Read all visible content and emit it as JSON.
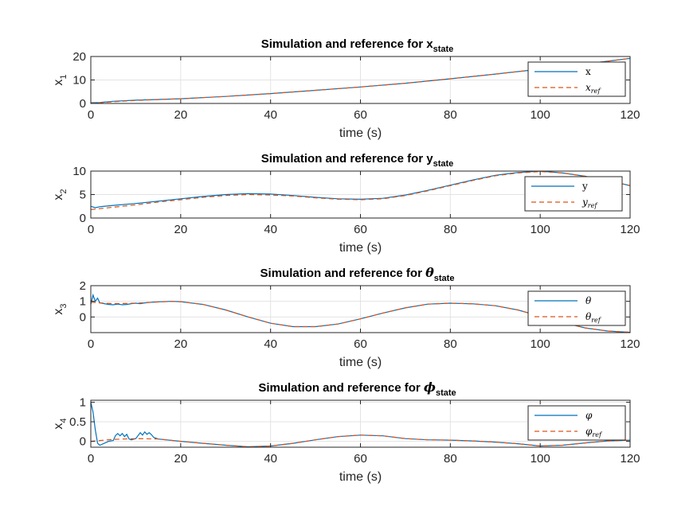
{
  "chart_data": [
    {
      "type": "line",
      "title": "Simulation and reference for x",
      "title_sub": "state",
      "xlabel": "time (s)",
      "ylabel": "x",
      "ylabel_sub": "1",
      "xlim": [
        0,
        120
      ],
      "ylim": [
        0,
        20
      ],
      "xticks": [
        0,
        20,
        40,
        60,
        80,
        100,
        120
      ],
      "yticks": [
        0,
        10,
        20
      ],
      "grid": true,
      "legend_position": "top-right",
      "series": [
        {
          "name": "x",
          "color": "#0072BD",
          "style": "solid",
          "x": [
            0,
            2,
            5,
            10,
            20,
            30,
            40,
            50,
            60,
            70,
            80,
            90,
            100,
            110,
            120
          ],
          "y": [
            0.3,
            0.4,
            0.9,
            1.4,
            2.0,
            3.0,
            4.2,
            5.6,
            7.0,
            8.6,
            10.5,
            12.5,
            14.6,
            16.8,
            19.2
          ]
        },
        {
          "name": "x_ref",
          "color": "#D95319",
          "style": "dashed",
          "x": [
            0,
            2,
            5,
            10,
            20,
            30,
            40,
            50,
            60,
            70,
            80,
            90,
            100,
            110,
            120
          ],
          "y": [
            0.0,
            0.3,
            0.7,
            1.3,
            2.0,
            3.0,
            4.2,
            5.6,
            7.0,
            8.6,
            10.5,
            12.5,
            14.6,
            16.8,
            19.2
          ]
        }
      ]
    },
    {
      "type": "line",
      "title": "Simulation and reference for y",
      "title_sub": "state",
      "xlabel": "time (s)",
      "ylabel": "x",
      "ylabel_sub": "2",
      "xlim": [
        0,
        120
      ],
      "ylim": [
        0,
        10
      ],
      "xticks": [
        0,
        20,
        40,
        60,
        80,
        100,
        120
      ],
      "yticks": [
        0,
        5,
        10
      ],
      "grid": true,
      "legend_position": "top-right",
      "series": [
        {
          "name": "y",
          "color": "#0072BD",
          "style": "solid",
          "x": [
            0,
            1,
            2,
            5,
            10,
            15,
            20,
            25,
            30,
            35,
            40,
            45,
            50,
            55,
            60,
            65,
            70,
            75,
            80,
            85,
            90,
            95,
            100,
            105,
            110,
            115,
            120
          ],
          "y": [
            2.5,
            2.2,
            2.4,
            2.7,
            3.1,
            3.6,
            4.1,
            4.6,
            5.0,
            5.2,
            5.1,
            4.8,
            4.4,
            4.1,
            4.0,
            4.2,
            4.9,
            5.9,
            7.0,
            8.1,
            9.1,
            9.7,
            10.0,
            9.6,
            8.9,
            8.0,
            6.9
          ]
        },
        {
          "name": "y_ref",
          "color": "#D95319",
          "style": "dashed",
          "x": [
            0,
            1,
            2,
            5,
            10,
            15,
            20,
            25,
            30,
            35,
            40,
            45,
            50,
            55,
            60,
            65,
            70,
            75,
            80,
            85,
            90,
            95,
            100,
            105,
            110,
            115,
            120
          ],
          "y": [
            1.8,
            1.9,
            2.0,
            2.3,
            2.8,
            3.4,
            3.9,
            4.4,
            4.8,
            5.0,
            4.9,
            4.7,
            4.3,
            4.0,
            3.9,
            4.1,
            4.8,
            5.8,
            6.9,
            8.0,
            9.0,
            9.6,
            9.9,
            9.6,
            8.9,
            8.0,
            6.9
          ]
        }
      ]
    },
    {
      "type": "line",
      "title": "Simulation and reference for θ",
      "title_sub": "state",
      "xlabel": "time (s)",
      "ylabel": "x",
      "ylabel_sub": "3",
      "xlim": [
        0,
        120
      ],
      "ylim": [
        -1,
        2
      ],
      "xticks": [
        0,
        20,
        40,
        60,
        80,
        100,
        120
      ],
      "yticks": [
        0,
        1,
        2
      ],
      "grid": true,
      "legend_position": "top-right",
      "series": [
        {
          "name": "θ",
          "color": "#0072BD",
          "style": "solid",
          "x": [
            0,
            0.5,
            1,
            1.5,
            2,
            3,
            4,
            5,
            6,
            7,
            8,
            9,
            10,
            11,
            12,
            13,
            14,
            15,
            18,
            20,
            25,
            30,
            35,
            40,
            45,
            50,
            55,
            60,
            65,
            70,
            75,
            80,
            85,
            90,
            95,
            100,
            105,
            110,
            115,
            120
          ],
          "y": [
            0.8,
            1.4,
            1.0,
            1.2,
            0.9,
            0.85,
            0.8,
            0.78,
            0.82,
            0.78,
            0.8,
            0.85,
            0.88,
            0.85,
            0.9,
            0.92,
            0.95,
            0.97,
            1.0,
            0.98,
            0.8,
            0.45,
            0.0,
            -0.4,
            -0.62,
            -0.62,
            -0.45,
            -0.12,
            0.25,
            0.58,
            0.82,
            0.88,
            0.84,
            0.72,
            0.45,
            0.05,
            -0.35,
            -0.7,
            -0.9,
            -0.98
          ]
        },
        {
          "name": "θ_ref",
          "color": "#D95319",
          "style": "dashed",
          "x": [
            0,
            2,
            5,
            10,
            15,
            18,
            20,
            25,
            30,
            35,
            40,
            45,
            50,
            55,
            60,
            65,
            70,
            75,
            80,
            85,
            90,
            95,
            100,
            105,
            110,
            115,
            120
          ],
          "y": [
            0.95,
            0.9,
            0.85,
            0.88,
            0.96,
            1.0,
            0.98,
            0.8,
            0.45,
            0.0,
            -0.4,
            -0.62,
            -0.62,
            -0.45,
            -0.12,
            0.25,
            0.58,
            0.82,
            0.88,
            0.84,
            0.72,
            0.45,
            0.05,
            -0.35,
            -0.7,
            -0.9,
            -0.98
          ]
        }
      ]
    },
    {
      "type": "line",
      "title": "Simulation and reference for ϕ",
      "title_sub": "state",
      "xlabel": "time (s)",
      "ylabel": "x",
      "ylabel_sub": "4",
      "xlim": [
        0,
        120
      ],
      "ylim": [
        -0.15,
        1.05
      ],
      "xticks": [
        0,
        20,
        40,
        60,
        80,
        100,
        120
      ],
      "yticks": [
        0,
        0.5,
        1
      ],
      "grid": true,
      "legend_position": "top-right",
      "series": [
        {
          "name": "φ",
          "color": "#0072BD",
          "style": "solid",
          "x": [
            0,
            0.5,
            1,
            1.5,
            2,
            3,
            4,
            5,
            5.5,
            6,
            6.5,
            7,
            7.5,
            8,
            8.5,
            9,
            10,
            11,
            11.5,
            12,
            12.5,
            13,
            13.5,
            14,
            15,
            20,
            25,
            30,
            35,
            40,
            45,
            50,
            55,
            60,
            65,
            70,
            75,
            80,
            85,
            90,
            95,
            100,
            105,
            110,
            115,
            120
          ],
          "y": [
            1.0,
            0.75,
            0.3,
            -0.05,
            -0.1,
            -0.05,
            0.0,
            0.02,
            0.15,
            0.2,
            0.14,
            0.2,
            0.12,
            0.18,
            0.06,
            0.04,
            0.07,
            0.22,
            0.16,
            0.24,
            0.18,
            0.22,
            0.17,
            0.1,
            0.06,
            0.0,
            -0.05,
            -0.1,
            -0.14,
            -0.12,
            -0.05,
            0.04,
            0.12,
            0.16,
            0.14,
            0.07,
            0.04,
            0.03,
            0.01,
            -0.02,
            -0.06,
            -0.12,
            -0.1,
            -0.04,
            0.01,
            0.03
          ]
        },
        {
          "name": "φ_ref",
          "color": "#D95319",
          "style": "dashed",
          "x": [
            0,
            2,
            5,
            10,
            15,
            20,
            25,
            30,
            35,
            40,
            45,
            50,
            55,
            60,
            65,
            70,
            75,
            80,
            85,
            90,
            95,
            100,
            105,
            110,
            115,
            120
          ],
          "y": [
            0.0,
            0.02,
            0.05,
            0.07,
            0.06,
            0.0,
            -0.05,
            -0.1,
            -0.14,
            -0.12,
            -0.05,
            0.04,
            0.12,
            0.16,
            0.14,
            0.07,
            0.04,
            0.03,
            0.01,
            -0.02,
            -0.06,
            -0.12,
            -0.1,
            -0.04,
            0.01,
            0.03
          ]
        }
      ]
    }
  ],
  "legends": [
    {
      "entries": [
        {
          "main": "x",
          "sub": "",
          "italic": false
        },
        {
          "main": "x",
          "sub": "ref",
          "italic": true
        }
      ]
    },
    {
      "entries": [
        {
          "main": "y",
          "sub": "",
          "italic": false
        },
        {
          "main": "y",
          "sub": "ref",
          "italic": true
        }
      ]
    },
    {
      "entries": [
        {
          "main": "θ",
          "sub": "",
          "italic": true
        },
        {
          "main": "θ",
          "sub": "ref",
          "italic": true
        }
      ]
    },
    {
      "entries": [
        {
          "main": "φ",
          "sub": "",
          "italic": true
        },
        {
          "main": "φ",
          "sub": "ref",
          "italic": true
        }
      ]
    }
  ]
}
